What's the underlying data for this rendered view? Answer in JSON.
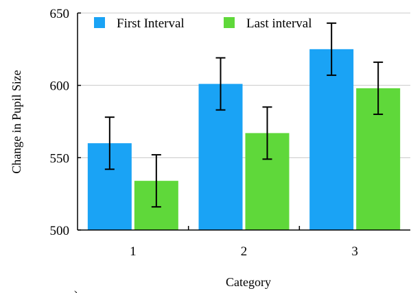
{
  "chart_data": {
    "type": "bar",
    "title": "",
    "xlabel": "Category",
    "ylabel": "Change in Pupil Size",
    "categories": [
      "1",
      "2",
      "3"
    ],
    "ylim": [
      500,
      650
    ],
    "yticks": [
      "500",
      "550",
      "600",
      "650"
    ],
    "grid": true,
    "legend_position": "top-left",
    "series": [
      {
        "name": "First Interval",
        "color": "#1aa3f5",
        "values": [
          560,
          601,
          625
        ],
        "errors": [
          18,
          18,
          18
        ]
      },
      {
        "name": "Last interval",
        "color": "#5fd83a",
        "values": [
          534,
          567,
          598
        ],
        "errors": [
          18,
          18,
          18
        ]
      }
    ],
    "panel_label": "a)"
  }
}
